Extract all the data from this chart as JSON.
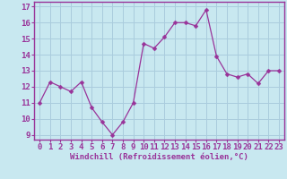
{
  "x": [
    0,
    1,
    2,
    3,
    4,
    5,
    6,
    7,
    8,
    9,
    10,
    11,
    12,
    13,
    14,
    15,
    16,
    17,
    18,
    19,
    20,
    21,
    22,
    23
  ],
  "y": [
    11.0,
    12.3,
    12.0,
    11.7,
    12.3,
    10.7,
    9.8,
    9.0,
    9.8,
    11.0,
    14.7,
    14.4,
    15.1,
    16.0,
    16.0,
    15.8,
    16.8,
    13.9,
    12.8,
    12.6,
    12.8,
    12.2,
    13.0,
    13.0
  ],
  "line_color": "#993399",
  "marker_color": "#993399",
  "bg_color": "#c8e8f0",
  "grid_color": "#aaccdd",
  "xlabel": "Windchill (Refroidissement éolien,°C)",
  "ylim_min": 8.7,
  "ylim_max": 17.3,
  "xlim_min": -0.5,
  "xlim_max": 23.5,
  "yticks": [
    9,
    10,
    11,
    12,
    13,
    14,
    15,
    16,
    17
  ],
  "xticks": [
    0,
    1,
    2,
    3,
    4,
    5,
    6,
    7,
    8,
    9,
    10,
    11,
    12,
    13,
    14,
    15,
    16,
    17,
    18,
    19,
    20,
    21,
    22,
    23
  ],
  "xlabel_fontsize": 6.5,
  "tick_fontsize": 6.5,
  "marker_size": 2.5,
  "linewidth": 0.9
}
